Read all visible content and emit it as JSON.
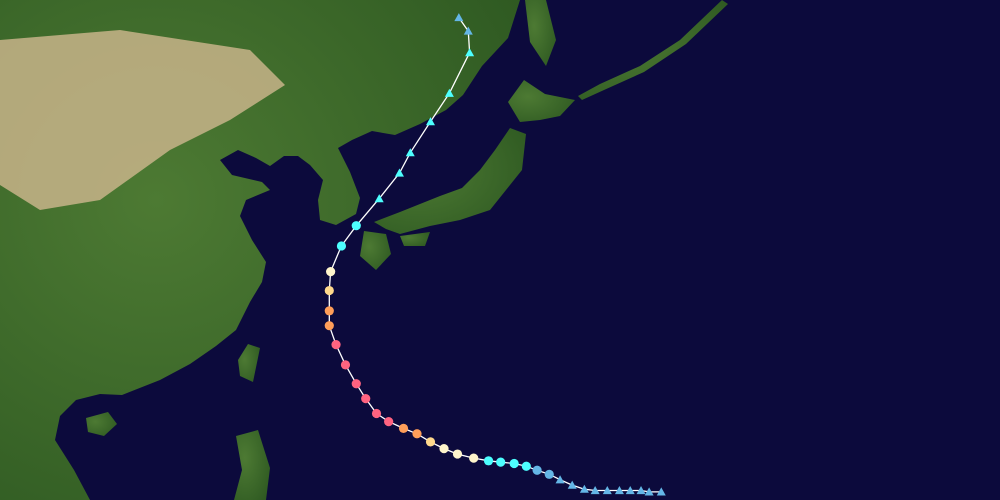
{
  "map": {
    "type": "tropical-cyclone-track",
    "extent": {
      "lon_min": 102.7,
      "lon_max": 176.8,
      "lat_min": 13.5,
      "lat_max": 50.5
    },
    "colors": {
      "ocean": "#0c0a3c",
      "land": "#3f6a2a",
      "desert": "#c8b48a",
      "track_line": "#ffffff"
    },
    "category_colors": {
      "TD": "#64b6e6",
      "TS": "#4dffff",
      "C1": "#fff5cc",
      "C2": "#ffd98c",
      "C3": "#ff9e59",
      "C4": "#ff6380"
    },
    "legend": "none",
    "track": [
      {
        "lon": 151.7,
        "lat": 14.1,
        "cat": "TD",
        "shape": "triangle"
      },
      {
        "lon": 150.8,
        "lat": 14.1,
        "cat": "TD",
        "shape": "triangle"
      },
      {
        "lon": 150.2,
        "lat": 14.2,
        "cat": "TD",
        "shape": "triangle"
      },
      {
        "lon": 149.4,
        "lat": 14.2,
        "cat": "TD",
        "shape": "triangle"
      },
      {
        "lon": 148.6,
        "lat": 14.2,
        "cat": "TD",
        "shape": "triangle"
      },
      {
        "lon": 147.7,
        "lat": 14.2,
        "cat": "TD",
        "shape": "triangle"
      },
      {
        "lon": 146.8,
        "lat": 14.2,
        "cat": "TD",
        "shape": "triangle"
      },
      {
        "lon": 146.0,
        "lat": 14.3,
        "cat": "TD",
        "shape": "triangle"
      },
      {
        "lon": 145.1,
        "lat": 14.6,
        "cat": "TD",
        "shape": "triangle"
      },
      {
        "lon": 144.2,
        "lat": 15.0,
        "cat": "TD",
        "shape": "triangle"
      },
      {
        "lon": 143.4,
        "lat": 15.4,
        "cat": "TD",
        "shape": "circle"
      },
      {
        "lon": 142.5,
        "lat": 15.7,
        "cat": "TD",
        "shape": "circle"
      },
      {
        "lon": 141.7,
        "lat": 16.0,
        "cat": "TS",
        "shape": "circle"
      },
      {
        "lon": 140.8,
        "lat": 16.2,
        "cat": "TS",
        "shape": "circle"
      },
      {
        "lon": 139.8,
        "lat": 16.3,
        "cat": "TS",
        "shape": "circle"
      },
      {
        "lon": 138.9,
        "lat": 16.4,
        "cat": "TS",
        "shape": "circle"
      },
      {
        "lon": 137.8,
        "lat": 16.6,
        "cat": "C1",
        "shape": "circle"
      },
      {
        "lon": 136.6,
        "lat": 16.9,
        "cat": "C1",
        "shape": "circle"
      },
      {
        "lon": 135.6,
        "lat": 17.3,
        "cat": "C1",
        "shape": "circle"
      },
      {
        "lon": 134.6,
        "lat": 17.8,
        "cat": "C2",
        "shape": "circle"
      },
      {
        "lon": 133.6,
        "lat": 18.4,
        "cat": "C3",
        "shape": "circle"
      },
      {
        "lon": 132.6,
        "lat": 18.8,
        "cat": "C3",
        "shape": "circle"
      },
      {
        "lon": 131.5,
        "lat": 19.3,
        "cat": "C4",
        "shape": "circle"
      },
      {
        "lon": 130.6,
        "lat": 19.9,
        "cat": "C4",
        "shape": "circle"
      },
      {
        "lon": 129.8,
        "lat": 21.0,
        "cat": "C4",
        "shape": "circle"
      },
      {
        "lon": 129.1,
        "lat": 22.1,
        "cat": "C4",
        "shape": "circle"
      },
      {
        "lon": 128.3,
        "lat": 23.5,
        "cat": "C4",
        "shape": "circle"
      },
      {
        "lon": 127.6,
        "lat": 25.0,
        "cat": "C4",
        "shape": "circle"
      },
      {
        "lon": 127.1,
        "lat": 26.4,
        "cat": "C3",
        "shape": "circle"
      },
      {
        "lon": 127.1,
        "lat": 27.5,
        "cat": "C3",
        "shape": "circle"
      },
      {
        "lon": 127.1,
        "lat": 29.0,
        "cat": "C2",
        "shape": "circle"
      },
      {
        "lon": 127.2,
        "lat": 30.4,
        "cat": "C1",
        "shape": "circle"
      },
      {
        "lon": 128.0,
        "lat": 32.3,
        "cat": "TS",
        "shape": "circle"
      },
      {
        "lon": 129.1,
        "lat": 33.8,
        "cat": "TS",
        "shape": "circle"
      },
      {
        "lon": 130.8,
        "lat": 35.8,
        "cat": "TS",
        "shape": "triangle"
      },
      {
        "lon": 132.3,
        "lat": 37.7,
        "cat": "TS",
        "shape": "triangle"
      },
      {
        "lon": 133.1,
        "lat": 39.2,
        "cat": "TS",
        "shape": "triangle"
      },
      {
        "lon": 134.6,
        "lat": 41.5,
        "cat": "TS",
        "shape": "triangle"
      },
      {
        "lon": 136.0,
        "lat": 43.6,
        "cat": "TS",
        "shape": "triangle"
      },
      {
        "lon": 137.5,
        "lat": 46.6,
        "cat": "TS",
        "shape": "triangle"
      },
      {
        "lon": 137.4,
        "lat": 48.2,
        "cat": "TD",
        "shape": "triangle"
      },
      {
        "lon": 136.7,
        "lat": 49.2,
        "cat": "TD",
        "shape": "triangle"
      }
    ]
  }
}
